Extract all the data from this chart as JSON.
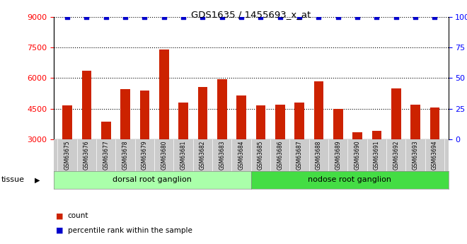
{
  "title": "GDS1635 / 1455693_x_at",
  "samples": [
    "GSM63675",
    "GSM63676",
    "GSM63677",
    "GSM63678",
    "GSM63679",
    "GSM63680",
    "GSM63681",
    "GSM63682",
    "GSM63683",
    "GSM63684",
    "GSM63685",
    "GSM63686",
    "GSM63687",
    "GSM63688",
    "GSM63689",
    "GSM63690",
    "GSM63691",
    "GSM63692",
    "GSM63693",
    "GSM63694"
  ],
  "counts": [
    4650,
    6350,
    3850,
    5450,
    5400,
    7400,
    4800,
    5550,
    5950,
    5150,
    4650,
    4700,
    4800,
    5850,
    4500,
    3350,
    3400,
    5500,
    4700,
    4550
  ],
  "percentiles": [
    100,
    100,
    100,
    100,
    100,
    100,
    100,
    100,
    100,
    100,
    100,
    100,
    100,
    100,
    100,
    100,
    100,
    100,
    100,
    100
  ],
  "bar_color": "#cc2200",
  "dot_color": "#0000cc",
  "ylim_left": [
    3000,
    9000
  ],
  "ylim_right": [
    0,
    100
  ],
  "yticks_left": [
    3000,
    4500,
    6000,
    7500,
    9000
  ],
  "yticks_right": [
    0,
    25,
    50,
    75,
    100
  ],
  "grid_lines": [
    4500,
    6000,
    7500,
    9000
  ],
  "dorsal_count": 10,
  "nodose_count": 10,
  "dorsal_label": "dorsal root ganglion",
  "nodose_label": "nodose root ganglion",
  "tissue_label": "tissue",
  "legend_count_label": "count",
  "legend_pct_label": "percentile rank within the sample",
  "dorsal_color": "#aaffaa",
  "nodose_color": "#44dd44",
  "xtick_bg": "#cccccc",
  "fig_width": 6.6,
  "fig_height": 3.45
}
